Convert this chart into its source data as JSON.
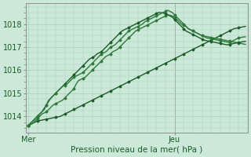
{
  "bg_color": "#cce8d8",
  "grid_color": "#a8ccb8",
  "line_color_dark": "#1a5c28",
  "line_color_mid": "#2d7a3a",
  "ylabel_values": [
    1014,
    1015,
    1016,
    1017,
    1018
  ],
  "xlabel": "Pression niveau de la mer( hPa )",
  "x_tick_labels": [
    "Mer",
    "Jeu"
  ],
  "x_tick_positions": [
    0,
    64
  ],
  "total_points": 96,
  "ylim": [
    1013.3,
    1018.9
  ],
  "xlim": [
    -1,
    96
  ],
  "jeu_x": 64,
  "series": [
    [
      1013.6,
      1013.65,
      1013.7,
      1013.75,
      1013.8,
      1013.82,
      1013.84,
      1013.86,
      1013.88,
      1013.9,
      1013.92,
      1013.94,
      1013.96,
      1013.98,
      1014.0,
      1014.05,
      1014.1,
      1014.15,
      1014.2,
      1014.25,
      1014.3,
      1014.35,
      1014.4,
      1014.45,
      1014.5,
      1014.55,
      1014.6,
      1014.65,
      1014.7,
      1014.75,
      1014.8,
      1014.85,
      1014.9,
      1014.95,
      1015.0,
      1015.05,
      1015.1,
      1015.15,
      1015.2,
      1015.25,
      1015.3,
      1015.35,
      1015.4,
      1015.45,
      1015.5,
      1015.55,
      1015.6,
      1015.65,
      1015.7,
      1015.75,
      1015.8,
      1015.85,
      1015.9,
      1015.95,
      1016.0,
      1016.05,
      1016.1,
      1016.15,
      1016.2,
      1016.25,
      1016.3,
      1016.35,
      1016.4,
      1016.45,
      1016.5,
      1016.55,
      1016.6,
      1016.65,
      1016.7,
      1016.75,
      1016.8,
      1016.85,
      1016.9,
      1016.95,
      1017.0,
      1017.05,
      1017.1,
      1017.15,
      1017.2,
      1017.25,
      1017.3,
      1017.35,
      1017.4,
      1017.45,
      1017.5,
      1017.55,
      1017.6,
      1017.65,
      1017.7,
      1017.75,
      1017.8,
      1017.82,
      1017.84,
      1017.86,
      1017.88,
      1017.9
    ],
    [
      1013.6,
      1013.65,
      1013.7,
      1013.8,
      1013.9,
      1014.0,
      1014.1,
      1014.15,
      1014.2,
      1014.3,
      1014.4,
      1014.5,
      1014.55,
      1014.6,
      1014.65,
      1014.7,
      1014.8,
      1014.9,
      1015.0,
      1015.1,
      1015.2,
      1015.4,
      1015.55,
      1015.6,
      1015.65,
      1015.7,
      1015.8,
      1015.9,
      1016.0,
      1016.1,
      1016.2,
      1016.3,
      1016.4,
      1016.5,
      1016.6,
      1016.65,
      1016.7,
      1016.8,
      1016.85,
      1016.9,
      1017.0,
      1017.1,
      1017.2,
      1017.3,
      1017.4,
      1017.5,
      1017.6,
      1017.7,
      1017.75,
      1017.8,
      1017.85,
      1017.9,
      1017.95,
      1018.0,
      1018.05,
      1018.1,
      1018.15,
      1018.2,
      1018.25,
      1018.3,
      1018.35,
      1018.4,
      1018.38,
      1018.35,
      1018.3,
      1018.2,
      1018.1,
      1018.0,
      1017.95,
      1017.9,
      1017.8,
      1017.75,
      1017.7,
      1017.65,
      1017.6,
      1017.55,
      1017.5,
      1017.48,
      1017.46,
      1017.44,
      1017.42,
      1017.4,
      1017.38,
      1017.36,
      1017.34,
      1017.32,
      1017.3,
      1017.28,
      1017.26,
      1017.24,
      1017.22,
      1017.2,
      1017.18,
      1017.16,
      1017.14,
      1017.12
    ],
    [
      1013.6,
      1013.7,
      1013.8,
      1013.9,
      1014.0,
      1014.1,
      1014.2,
      1014.3,
      1014.5,
      1014.7,
      1014.8,
      1014.9,
      1015.0,
      1015.1,
      1015.2,
      1015.3,
      1015.4,
      1015.5,
      1015.6,
      1015.7,
      1015.8,
      1015.9,
      1016.0,
      1016.1,
      1016.2,
      1016.3,
      1016.4,
      1016.5,
      1016.55,
      1016.6,
      1016.7,
      1016.75,
      1016.8,
      1016.9,
      1017.0,
      1017.1,
      1017.2,
      1017.3,
      1017.4,
      1017.5,
      1017.6,
      1017.7,
      1017.75,
      1017.8,
      1017.85,
      1017.9,
      1017.95,
      1018.0,
      1018.05,
      1018.1,
      1018.15,
      1018.2,
      1018.25,
      1018.3,
      1018.35,
      1018.4,
      1018.45,
      1018.5,
      1018.5,
      1018.48,
      1018.45,
      1018.4,
      1018.35,
      1018.3,
      1018.2,
      1018.1,
      1018.0,
      1017.9,
      1017.8,
      1017.7,
      1017.65,
      1017.6,
      1017.55,
      1017.5,
      1017.45,
      1017.4,
      1017.35,
      1017.3,
      1017.28,
      1017.26,
      1017.24,
      1017.22,
      1017.2,
      1017.18,
      1017.16,
      1017.14,
      1017.12,
      1017.1,
      1017.12,
      1017.14,
      1017.16,
      1017.18,
      1017.2,
      1017.22,
      1017.24,
      1017.25
    ],
    [
      1013.6,
      1013.7,
      1013.8,
      1013.9,
      1014.0,
      1014.1,
      1014.2,
      1014.35,
      1014.5,
      1014.65,
      1014.8,
      1014.9,
      1015.0,
      1015.1,
      1015.2,
      1015.3,
      1015.35,
      1015.4,
      1015.5,
      1015.6,
      1015.7,
      1015.75,
      1015.8,
      1015.85,
      1015.9,
      1016.0,
      1016.1,
      1016.2,
      1016.3,
      1016.4,
      1016.5,
      1016.6,
      1016.7,
      1016.75,
      1016.8,
      1016.9,
      1017.0,
      1017.05,
      1017.1,
      1017.2,
      1017.3,
      1017.4,
      1017.5,
      1017.6,
      1017.7,
      1017.75,
      1017.8,
      1017.85,
      1017.9,
      1017.95,
      1018.0,
      1018.1,
      1018.15,
      1018.2,
      1018.25,
      1018.3,
      1018.35,
      1018.4,
      1018.45,
      1018.5,
      1018.55,
      1018.6,
      1018.55,
      1018.5,
      1018.4,
      1018.3,
      1018.2,
      1018.1,
      1018.0,
      1017.9,
      1017.8,
      1017.75,
      1017.7,
      1017.65,
      1017.6,
      1017.55,
      1017.5,
      1017.45,
      1017.4,
      1017.38,
      1017.36,
      1017.34,
      1017.32,
      1017.3,
      1017.28,
      1017.26,
      1017.24,
      1017.22,
      1017.2,
      1017.25,
      1017.3,
      1017.35,
      1017.4,
      1017.42,
      1017.44,
      1017.45
    ]
  ]
}
